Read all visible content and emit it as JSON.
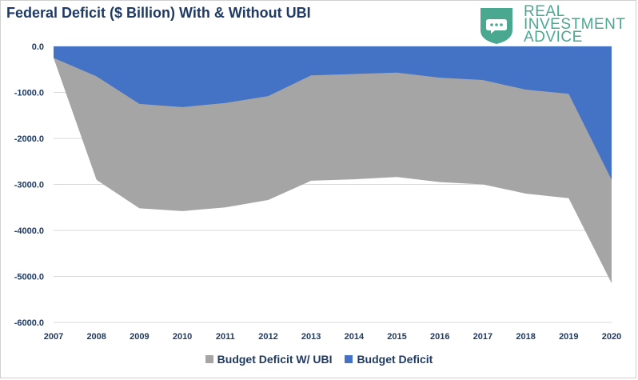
{
  "chart_data": {
    "type": "area",
    "title": "Federal Deficit ($ Billion) With & Without UBI",
    "xlabel": "",
    "ylabel": "",
    "x": [
      "2007",
      "2008",
      "2009",
      "2010",
      "2011",
      "2012",
      "2013",
      "2014",
      "2015",
      "2016",
      "2017",
      "2018",
      "2019",
      "2020"
    ],
    "ylim": [
      -6000,
      0
    ],
    "yticks": [
      "0.0",
      "-1000.0",
      "-2000.0",
      "-3000.0",
      "-4000.0",
      "-5000.0",
      "-6000.0"
    ],
    "grid": true,
    "legend_position": "bottom",
    "series": [
      {
        "name": "Budget Deficit W/ UBI",
        "color": "#a5a5a5",
        "values": [
          -250,
          -2900,
          -3520,
          -3580,
          -3500,
          -3340,
          -2920,
          -2890,
          -2840,
          -2950,
          -3000,
          -3200,
          -3300,
          -5150
        ]
      },
      {
        "name": "Budget Deficit",
        "color": "#4472c4",
        "values": [
          -250,
          -650,
          -1250,
          -1320,
          -1230,
          -1080,
          -630,
          -600,
          -570,
          -680,
          -730,
          -940,
          -1030,
          -2900
        ]
      }
    ]
  },
  "logo": {
    "line1": "REAL",
    "line2": "INVESTMENT",
    "line3": "ADVICE",
    "color": "#49a88f"
  }
}
